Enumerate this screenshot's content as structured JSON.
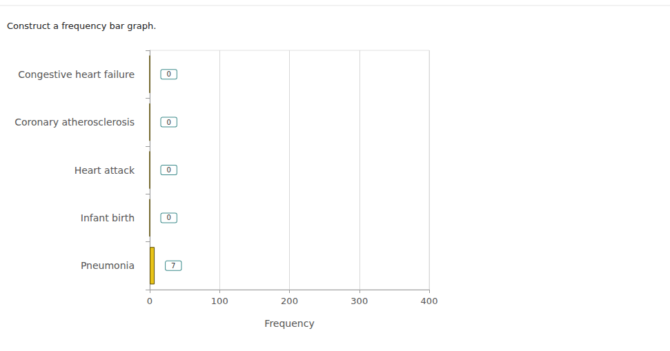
{
  "chart_data": {
    "type": "bar",
    "title": "Construct a frequency bar graph.",
    "orientation": "horizontal",
    "categories": [
      "Congestive heart failure",
      "Coronary atherosclerosis",
      "Heart attack",
      "Infant birth",
      "Pneumonia"
    ],
    "values": [
      0,
      0,
      0,
      0,
      7
    ],
    "color": "#e8c318",
    "xlabel": "Frequency",
    "xlim": [
      0,
      400
    ],
    "xticks": [
      0,
      100,
      200,
      300,
      400
    ],
    "grid": true,
    "data_labels": true
  }
}
